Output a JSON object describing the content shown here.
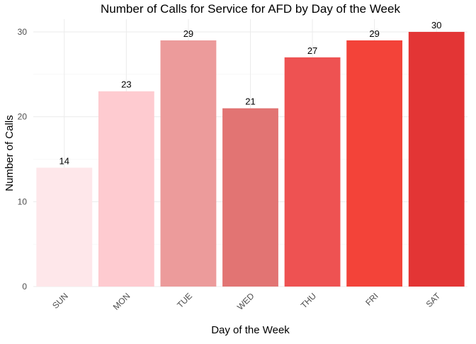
{
  "chart_data": {
    "type": "bar",
    "title": "Number of Calls for Service for AFD by Day of the Week",
    "xlabel": "Day of the Week",
    "ylabel": "Number of Calls",
    "categories": [
      "SUN",
      "MON",
      "TUE",
      "WED",
      "THU",
      "FRI",
      "SAT"
    ],
    "values": [
      14,
      23,
      29,
      21,
      27,
      29,
      30
    ],
    "colors": [
      "#fee7ea",
      "#fecbd0",
      "#ec9b9b",
      "#e27473",
      "#ee5252",
      "#f34339",
      "#e33535"
    ],
    "ylim": [
      0,
      31.5
    ],
    "yticks": [
      0,
      10,
      20,
      30
    ],
    "grid": true,
    "legend": "none"
  }
}
